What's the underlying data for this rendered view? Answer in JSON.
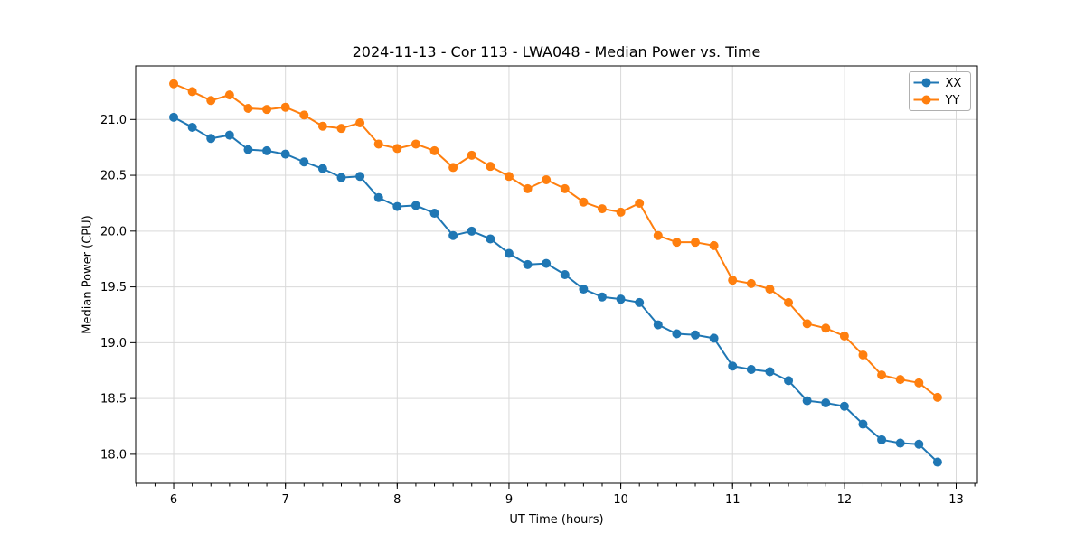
{
  "chart_data": {
    "type": "line",
    "title": "2024-11-13 - Cor 113 - LWA048 - Median Power vs. Time",
    "xlabel": "UT Time (hours)",
    "ylabel": "Median Power (CPU)",
    "x": [
      6.0,
      6.1667,
      6.3333,
      6.5,
      6.6667,
      6.8333,
      7.0,
      7.1667,
      7.3333,
      7.5,
      7.6667,
      7.8333,
      8.0,
      8.1667,
      8.3333,
      8.5,
      8.6667,
      8.8333,
      9.0,
      9.1667,
      9.3333,
      9.5,
      9.6667,
      9.8333,
      10.0,
      10.1667,
      10.3333,
      10.5,
      10.6667,
      10.8333,
      11.0,
      11.1667,
      11.3333,
      11.5,
      11.6667,
      11.8333,
      12.0,
      12.1667,
      12.3333,
      12.5,
      12.6667,
      12.8333
    ],
    "series": [
      {
        "name": "XX",
        "color": "#1f77b4",
        "marker": "circle",
        "values": [
          21.02,
          20.93,
          20.83,
          20.86,
          20.73,
          20.72,
          20.69,
          20.62,
          20.56,
          20.48,
          20.49,
          20.3,
          20.22,
          20.23,
          20.16,
          19.96,
          20.0,
          19.93,
          19.8,
          19.7,
          19.71,
          19.61,
          19.48,
          19.41,
          19.39,
          19.36,
          19.16,
          19.08,
          19.07,
          19.04,
          18.79,
          18.76,
          18.74,
          18.66,
          18.48,
          18.46,
          18.43,
          18.27,
          18.13,
          18.1,
          18.09,
          17.93
        ]
      },
      {
        "name": "YY",
        "color": "#ff7f0e",
        "marker": "circle",
        "values": [
          21.32,
          21.25,
          21.17,
          21.22,
          21.1,
          21.09,
          21.11,
          21.04,
          20.94,
          20.92,
          20.97,
          20.78,
          20.74,
          20.78,
          20.72,
          20.57,
          20.68,
          20.58,
          20.49,
          20.38,
          20.46,
          20.38,
          20.26,
          20.2,
          20.17,
          20.25,
          19.96,
          19.9,
          19.9,
          19.87,
          19.56,
          19.53,
          19.48,
          19.36,
          19.17,
          19.13,
          19.06,
          18.89,
          18.71,
          18.67,
          18.64,
          18.51
        ]
      }
    ],
    "xlim": [
      5.66,
      13.19
    ],
    "ylim": [
      17.74,
      21.48
    ],
    "x_ticks": [
      6,
      7,
      8,
      9,
      10,
      11,
      12,
      13
    ],
    "x_tick_labels": [
      "6",
      "7",
      "8",
      "9",
      "10",
      "11",
      "12",
      "13"
    ],
    "x_minor_tick_step": 0.166667,
    "y_ticks": [
      18.0,
      18.5,
      19.0,
      19.5,
      20.0,
      20.5,
      21.0
    ],
    "y_tick_labels": [
      "18.0",
      "18.5",
      "19.0",
      "19.5",
      "20.0",
      "20.5",
      "21.0"
    ],
    "grid": true,
    "legend": {
      "position": "upper right",
      "entries": [
        "XX",
        "YY"
      ]
    }
  },
  "colors": {
    "grid": "#d9d9d9",
    "spine": "#000000",
    "tick": "#000000",
    "legend_border": "#b0b0b0",
    "background": "#ffffff"
  }
}
